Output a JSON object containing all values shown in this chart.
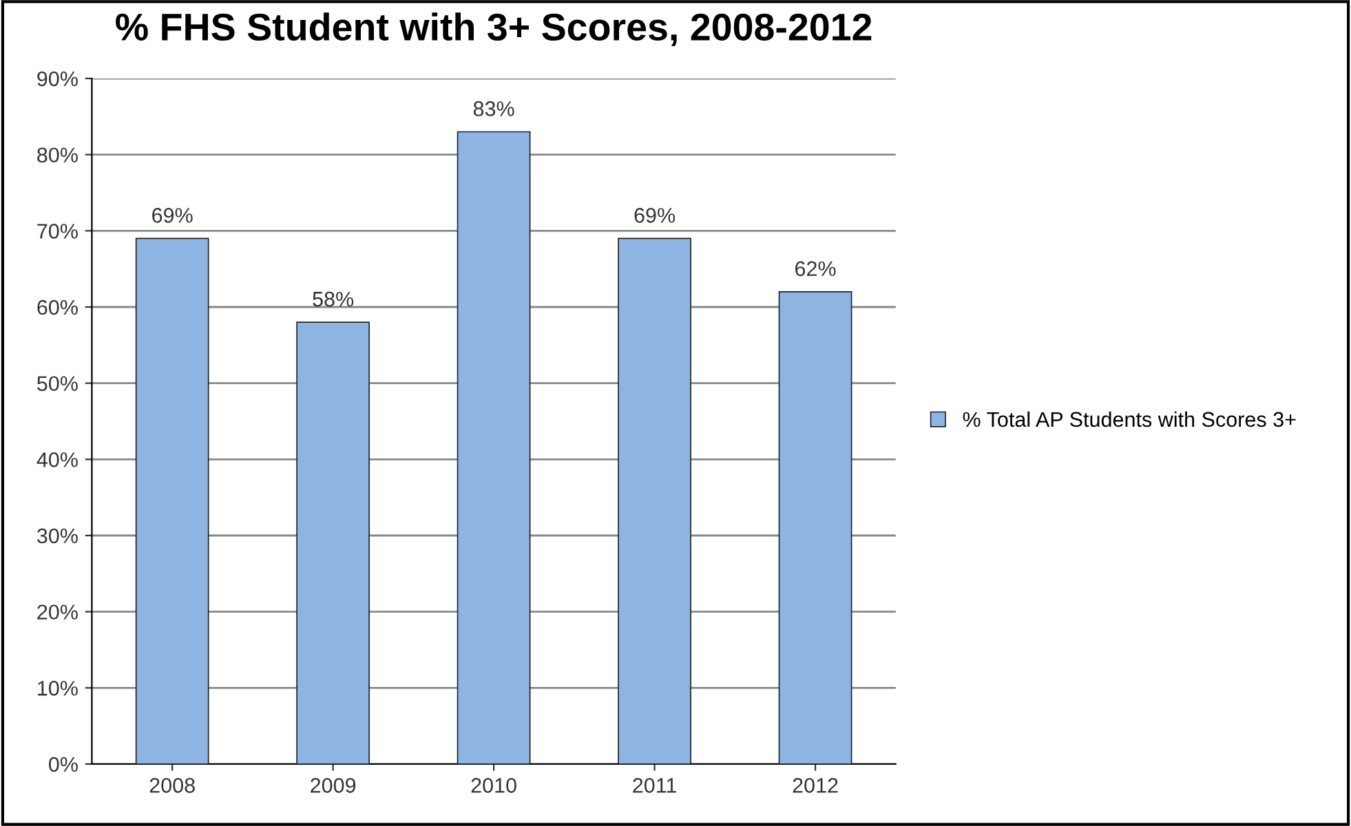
{
  "chart_data": {
    "type": "bar",
    "title": "% FHS Student with 3+ Scores, 2008-2012",
    "categories": [
      "2008",
      "2009",
      "2010",
      "2011",
      "2012"
    ],
    "series": [
      {
        "name": "% Total AP Students with Scores 3+",
        "color": "#8db4e2",
        "values": [
          69,
          58,
          83,
          69,
          62
        ]
      }
    ],
    "value_labels": [
      "69%",
      "58%",
      "83%",
      "69%",
      "62%"
    ],
    "ylim": [
      0,
      90
    ],
    "yticks": [
      {
        "value": 0,
        "label": "0%"
      },
      {
        "value": 10,
        "label": "10%"
      },
      {
        "value": 20,
        "label": "20%"
      },
      {
        "value": 30,
        "label": "30%"
      },
      {
        "value": 40,
        "label": "40%"
      },
      {
        "value": 50,
        "label": "50%"
      },
      {
        "value": 60,
        "label": "60%"
      },
      {
        "value": 70,
        "label": "70%"
      },
      {
        "value": 80,
        "label": "80%"
      },
      {
        "value": 90,
        "label": "90%"
      }
    ],
    "grid": "y",
    "legend": "right"
  }
}
